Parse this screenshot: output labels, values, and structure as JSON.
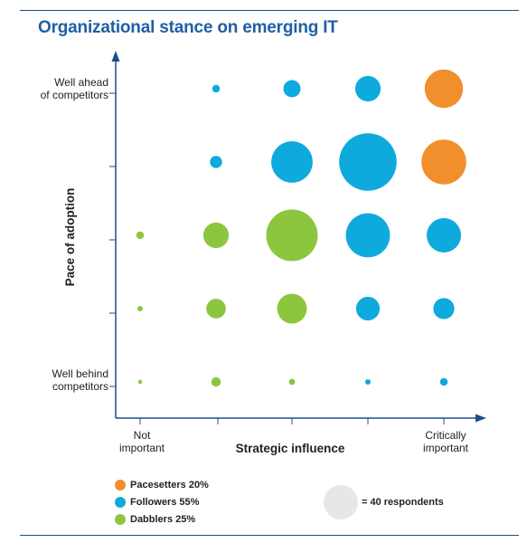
{
  "chart_data": {
    "type": "scatter",
    "title": "Organizational stance on emerging IT",
    "xlabel": "Strategic influence",
    "ylabel": "Pace of adoption",
    "x_tick_labels": [
      {
        "x": 1,
        "lines": [
          "Not",
          "important"
        ]
      },
      {
        "x": 5,
        "lines": [
          "Critically",
          "important"
        ]
      }
    ],
    "y_tick_labels": [
      {
        "y": 1,
        "lines": [
          "Well behind",
          "competitors"
        ]
      },
      {
        "y": 5,
        "lines": [
          "Well ahead",
          "of competitors"
        ]
      }
    ],
    "x_ticks": [
      1,
      2,
      3,
      4,
      5
    ],
    "y_ticks": [
      1,
      2,
      3,
      4,
      5
    ],
    "size_key": {
      "respondents": 40,
      "label": "= 40 respondents"
    },
    "series": [
      {
        "name": "Pacesetters 20%",
        "color": "#f18f2c",
        "points": [
          {
            "x": 5,
            "y": 5,
            "size": 50
          },
          {
            "x": 5,
            "y": 4,
            "size": 68
          }
        ]
      },
      {
        "name": "Followers 55%",
        "color": "#0eaadd",
        "points": [
          {
            "x": 2,
            "y": 5,
            "size": 2
          },
          {
            "x": 3,
            "y": 5,
            "size": 10
          },
          {
            "x": 4,
            "y": 5,
            "size": 22
          },
          {
            "x": 2,
            "y": 4,
            "size": 5
          },
          {
            "x": 3,
            "y": 4,
            "size": 58
          },
          {
            "x": 4,
            "y": 4,
            "size": 112
          },
          {
            "x": 4,
            "y": 3,
            "size": 66
          },
          {
            "x": 5,
            "y": 3,
            "size": 40
          },
          {
            "x": 4,
            "y": 2,
            "size": 19
          },
          {
            "x": 5,
            "y": 2,
            "size": 15
          },
          {
            "x": 4,
            "y": 1,
            "size": 1
          },
          {
            "x": 5,
            "y": 1,
            "size": 2
          }
        ]
      },
      {
        "name": "Dabblers 25%",
        "color": "#8cc63f",
        "points": [
          {
            "x": 1,
            "y": 3,
            "size": 2
          },
          {
            "x": 2,
            "y": 3,
            "size": 22
          },
          {
            "x": 3,
            "y": 3,
            "size": 90
          },
          {
            "x": 1,
            "y": 2,
            "size": 1
          },
          {
            "x": 2,
            "y": 2,
            "size": 13
          },
          {
            "x": 3,
            "y": 2,
            "size": 30
          },
          {
            "x": 1,
            "y": 1,
            "size": 0.6
          },
          {
            "x": 2,
            "y": 1,
            "size": 3
          },
          {
            "x": 3,
            "y": 1,
            "size": 1.3
          }
        ]
      }
    ]
  }
}
